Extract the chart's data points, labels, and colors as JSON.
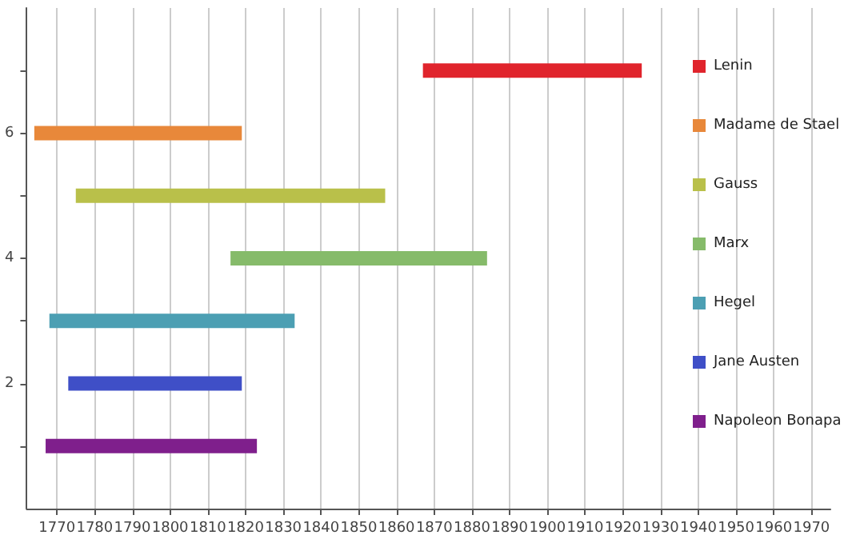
{
  "chart_data": {
    "type": "bar",
    "orientation": "horizontal",
    "grid": "x",
    "legend": "right",
    "xlim": [
      1762,
      1975
    ],
    "xticks": [
      1770,
      1780,
      1790,
      1800,
      1810,
      1820,
      1830,
      1840,
      1850,
      1860,
      1870,
      1880,
      1890,
      1900,
      1910,
      1920,
      1930,
      1940,
      1950,
      1960,
      1970
    ],
    "ylim": [
      0,
      8
    ],
    "yticks": [
      {
        "value": 1,
        "label": null
      },
      2,
      {
        "value": 3,
        "label": null
      },
      4,
      {
        "value": 5,
        "label": null
      },
      6,
      {
        "value": 7,
        "label": null
      }
    ],
    "series": [
      {
        "name": "Lenin",
        "color": "#e0242c",
        "x": [
          7
        ],
        "base": [
          1867
        ],
        "values": [
          58
        ]
      },
      {
        "name": "Madame de Stael",
        "color": "#e8883a",
        "x": [
          6
        ],
        "base": [
          1764
        ],
        "values": [
          55
        ]
      },
      {
        "name": "Gauss",
        "color": "#b9c04a",
        "x": [
          5
        ],
        "base": [
          1775
        ],
        "values": [
          82
        ]
      },
      {
        "name": "Marx",
        "color": "#86bb6a",
        "x": [
          4
        ],
        "base": [
          1816
        ],
        "values": [
          68
        ]
      },
      {
        "name": "Hegel",
        "color": "#4c9fb3",
        "x": [
          3
        ],
        "base": [
          1768
        ],
        "values": [
          65
        ]
      },
      {
        "name": "Jane Austen",
        "color": "#3f4fc7",
        "x": [
          2
        ],
        "base": [
          1773
        ],
        "values": [
          46
        ]
      },
      {
        "name": "Napoleon Bonapa",
        "color": "#7f1f8c",
        "x": [
          1
        ],
        "base": [
          1767
        ],
        "values": [
          56
        ]
      }
    ]
  }
}
